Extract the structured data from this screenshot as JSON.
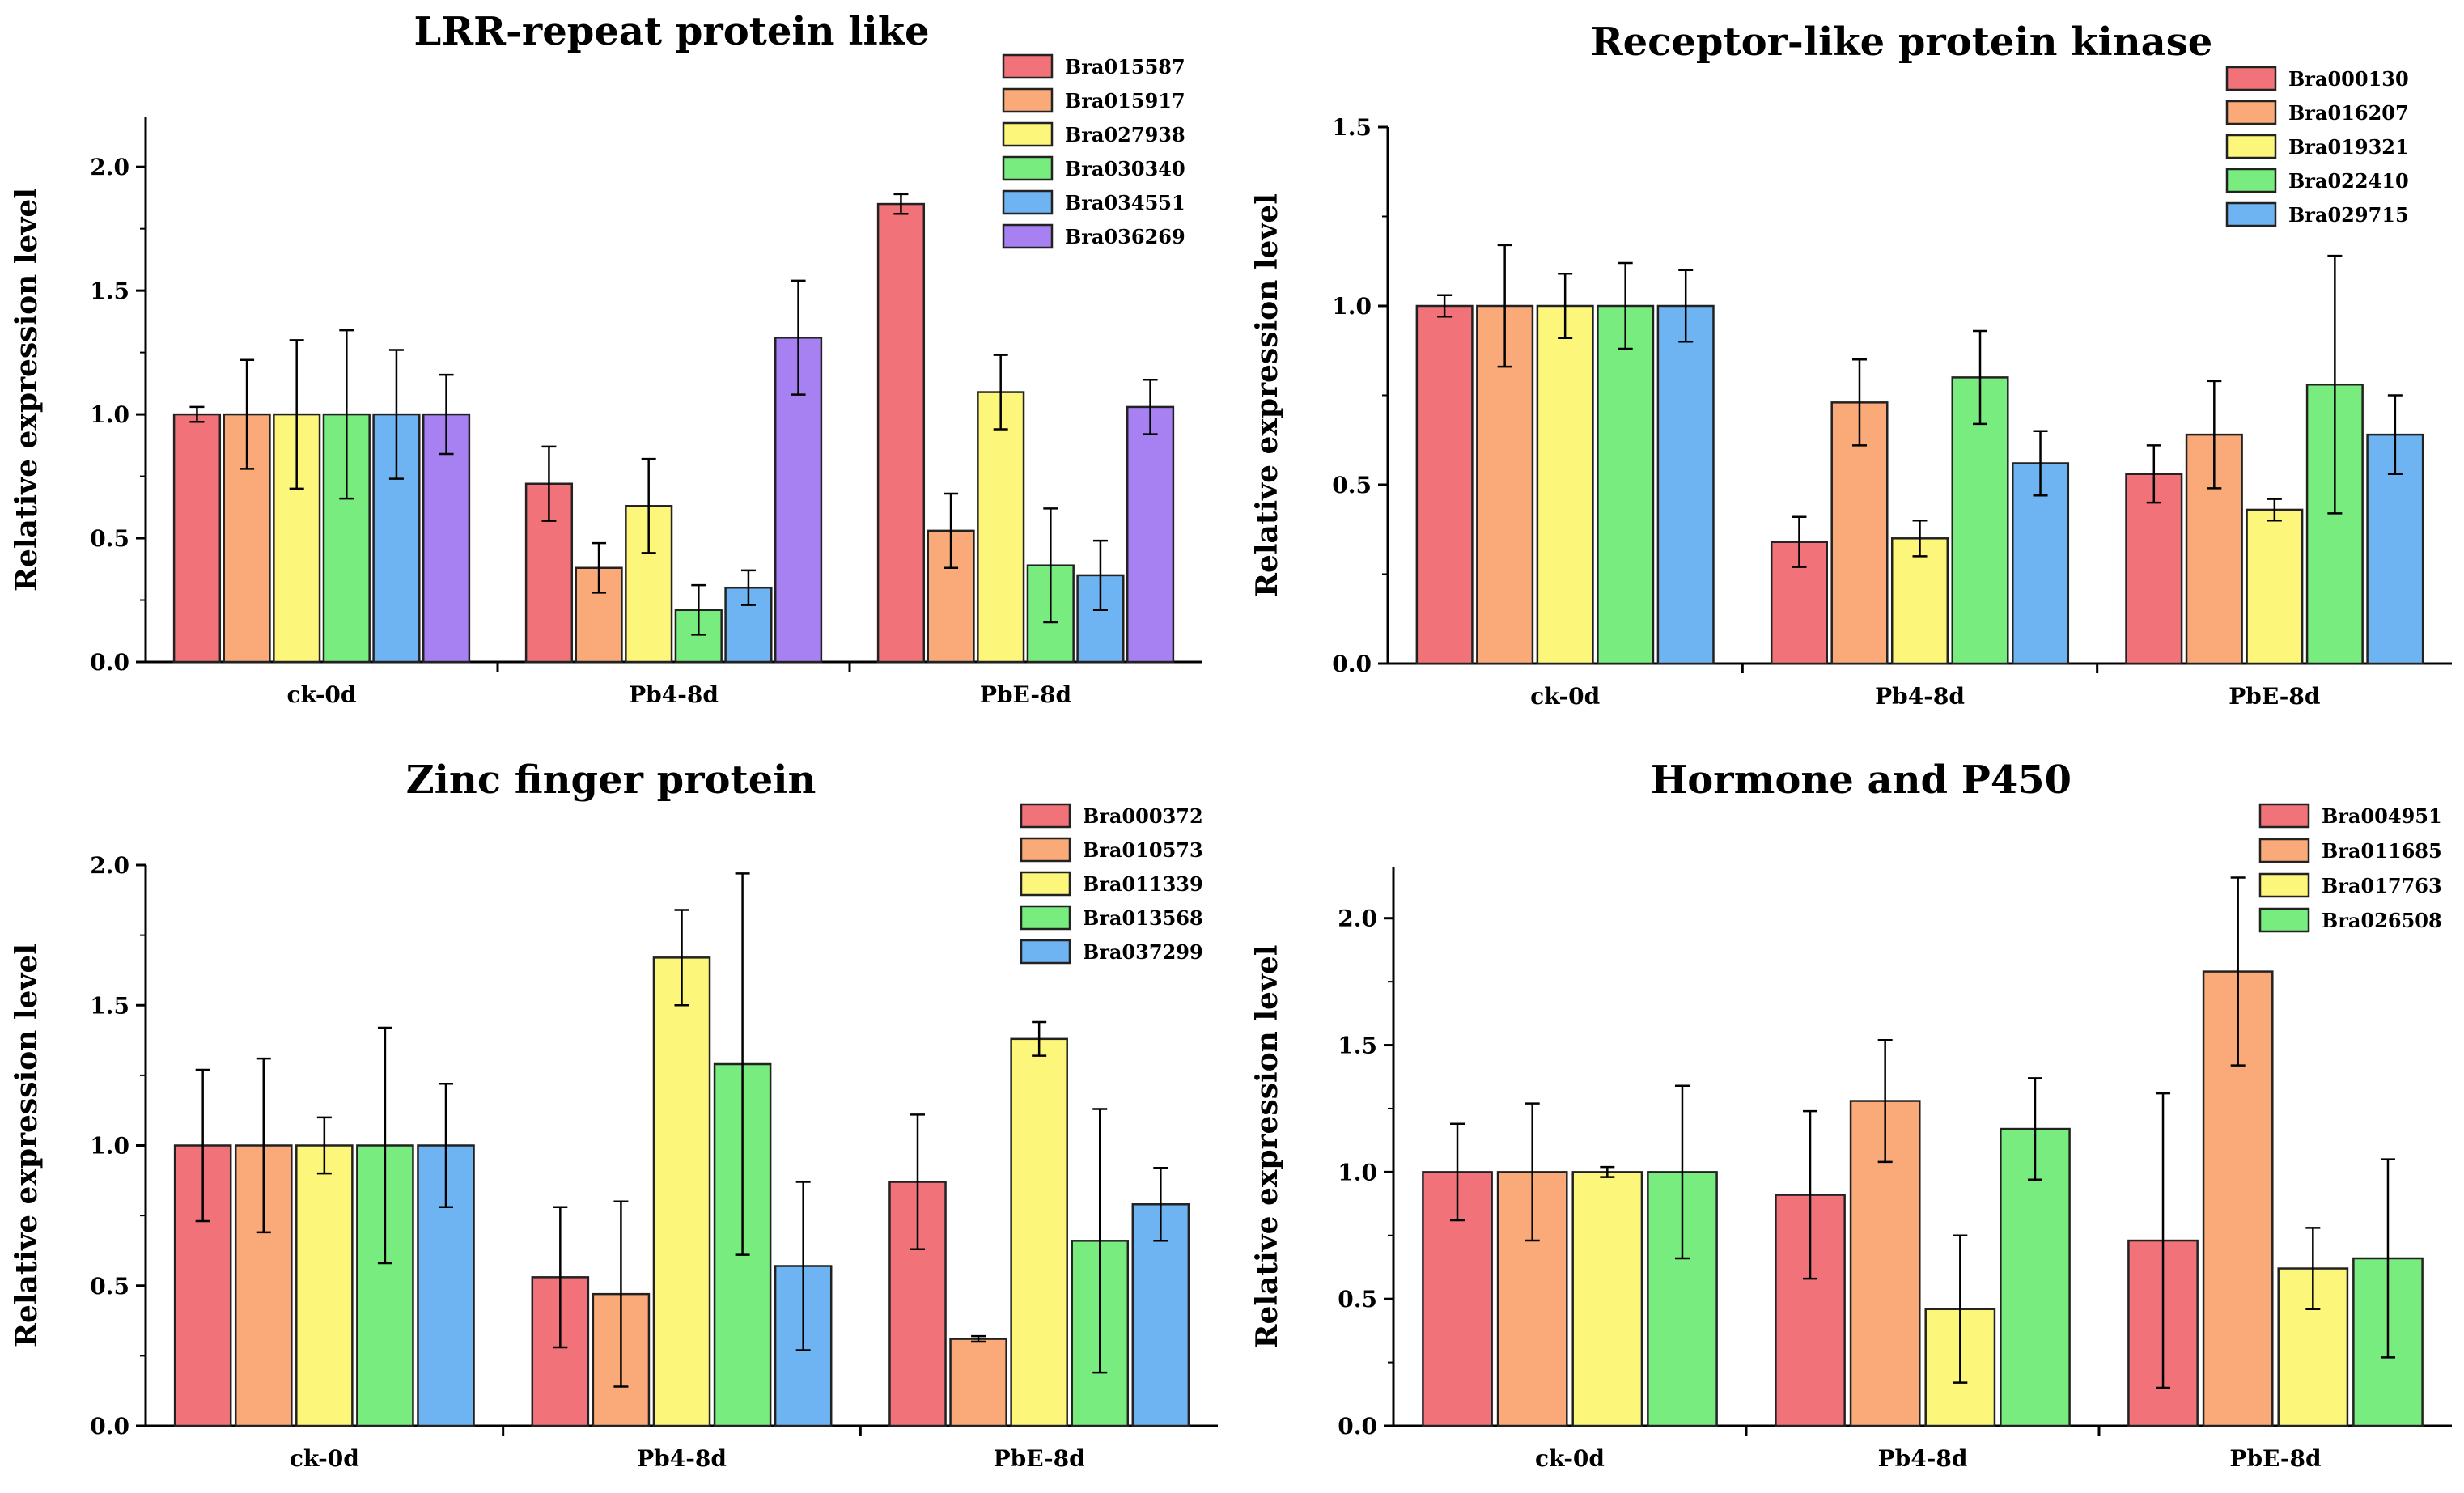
{
  "colors": {
    "red": "#F2727A",
    "orange": "#F9AA78",
    "yellow": "#FCF67A",
    "green": "#78EC7E",
    "blue": "#6EB4F2",
    "purple": "#A780F2"
  },
  "chart_data": [
    {
      "type": "bar",
      "title": "LRR-repeat protein like",
      "ylabel": "Relative expression level",
      "xlabel": "",
      "ylim": [
        0,
        2.2
      ],
      "yticks": [
        "0.0",
        "0.5",
        "1.0",
        "1.5",
        "2.0"
      ],
      "ytick_values": [
        0,
        0.5,
        1.0,
        1.5,
        2.0
      ],
      "categories": [
        "ck-0d",
        "Pb4-8d",
        "PbE-8d"
      ],
      "legend_position": "top-right",
      "series": [
        {
          "name": "Bra015587",
          "color": "#F2727A",
          "values": [
            1.0,
            0.72,
            1.85
          ],
          "errors": [
            0.03,
            0.15,
            0.04
          ]
        },
        {
          "name": "Bra015917",
          "color": "#F9AA78",
          "values": [
            1.0,
            0.38,
            0.53
          ],
          "errors": [
            0.22,
            0.1,
            0.15
          ]
        },
        {
          "name": "Bra027938",
          "color": "#FCF67A",
          "values": [
            1.0,
            0.63,
            1.09
          ],
          "errors": [
            0.3,
            0.19,
            0.15
          ]
        },
        {
          "name": "Bra030340",
          "color": "#78EC7E",
          "values": [
            1.0,
            0.21,
            0.39
          ],
          "errors": [
            0.34,
            0.1,
            0.23
          ]
        },
        {
          "name": "Bra034551",
          "color": "#6EB4F2",
          "values": [
            1.0,
            0.3,
            0.35
          ],
          "errors": [
            0.26,
            0.07,
            0.14
          ]
        },
        {
          "name": "Bra036269",
          "color": "#A780F2",
          "values": [
            1.0,
            1.31,
            1.03
          ],
          "errors": [
            0.16,
            0.23,
            0.11
          ]
        }
      ]
    },
    {
      "type": "bar",
      "title": "Receptor-like protein kinase",
      "ylabel": "Relative expression level",
      "xlabel": "",
      "ylim": [
        0,
        1.5
      ],
      "yticks": [
        "0.0",
        "0.5",
        "1.0",
        "1.5"
      ],
      "ytick_values": [
        0,
        0.5,
        1.0,
        1.5
      ],
      "categories": [
        "ck-0d",
        "Pb4-8d",
        "PbE-8d"
      ],
      "legend_position": "top-right",
      "series": [
        {
          "name": "Bra000130",
          "color": "#F2727A",
          "values": [
            1.0,
            0.34,
            0.53
          ],
          "errors": [
            0.03,
            0.07,
            0.08
          ]
        },
        {
          "name": "Bra016207",
          "color": "#F9AA78",
          "values": [
            1.0,
            0.73,
            0.64
          ],
          "errors": [
            0.17,
            0.12,
            0.15
          ]
        },
        {
          "name": "Bra019321",
          "color": "#FCF67A",
          "values": [
            1.0,
            0.35,
            0.43
          ],
          "errors": [
            0.09,
            0.05,
            0.03
          ]
        },
        {
          "name": "Bra022410",
          "color": "#78EC7E",
          "values": [
            1.0,
            0.8,
            0.78
          ],
          "errors": [
            0.12,
            0.13,
            0.36
          ]
        },
        {
          "name": "Bra029715",
          "color": "#6EB4F2",
          "values": [
            1.0,
            0.56,
            0.64
          ],
          "errors": [
            0.1,
            0.09,
            0.11
          ]
        }
      ]
    },
    {
      "type": "bar",
      "title": "Zinc finger protein",
      "ylabel": "Relative expression level",
      "xlabel": "",
      "ylim": [
        0,
        2.0
      ],
      "yticks": [
        "0.0",
        "0.5",
        "1.0",
        "1.5",
        "2.0"
      ],
      "ytick_values": [
        0,
        0.5,
        1.0,
        1.5,
        2.0
      ],
      "categories": [
        "ck-0d",
        "Pb4-8d",
        "PbE-8d"
      ],
      "legend_position": "top-right",
      "series": [
        {
          "name": "Bra000372",
          "color": "#F2727A",
          "values": [
            1.0,
            0.53,
            0.87
          ],
          "errors": [
            0.27,
            0.25,
            0.24
          ]
        },
        {
          "name": "Bra010573",
          "color": "#F9AA78",
          "values": [
            1.0,
            0.47,
            0.31
          ],
          "errors": [
            0.31,
            0.33,
            0.01
          ]
        },
        {
          "name": "Bra011339",
          "color": "#FCF67A",
          "values": [
            1.0,
            1.67,
            1.38
          ],
          "errors": [
            0.1,
            0.17,
            0.06
          ]
        },
        {
          "name": "Bra013568",
          "color": "#78EC7E",
          "values": [
            1.0,
            1.29,
            0.66
          ],
          "errors": [
            0.42,
            0.68,
            0.47
          ]
        },
        {
          "name": "Bra037299",
          "color": "#6EB4F2",
          "values": [
            1.0,
            0.57,
            0.79
          ],
          "errors": [
            0.22,
            0.3,
            0.13
          ]
        }
      ]
    },
    {
      "type": "bar",
      "title": "Hormone and P450",
      "ylabel": "Relative expression level",
      "xlabel": "",
      "ylim": [
        0,
        2.2
      ],
      "yticks": [
        "0.0",
        "0.5",
        "1.0",
        "1.5",
        "2.0"
      ],
      "ytick_values": [
        0,
        0.5,
        1.0,
        1.5,
        2.0
      ],
      "categories": [
        "ck-0d",
        "Pb4-8d",
        "PbE-8d"
      ],
      "legend_position": "top-right",
      "series": [
        {
          "name": "Bra004951",
          "color": "#F2727A",
          "values": [
            1.0,
            0.91,
            0.73
          ],
          "errors": [
            0.19,
            0.33,
            0.58
          ]
        },
        {
          "name": "Bra011685",
          "color": "#F9AA78",
          "values": [
            1.0,
            1.28,
            1.79
          ],
          "errors": [
            0.27,
            0.24,
            0.37
          ]
        },
        {
          "name": "Bra017763",
          "color": "#FCF67A",
          "values": [
            1.0,
            0.46,
            0.62
          ],
          "errors": [
            0.02,
            0.29,
            0.16
          ]
        },
        {
          "name": "Bra026508",
          "color": "#78EC7E",
          "values": [
            1.0,
            1.17,
            0.66
          ],
          "errors": [
            0.34,
            0.2,
            0.39
          ]
        }
      ]
    }
  ]
}
